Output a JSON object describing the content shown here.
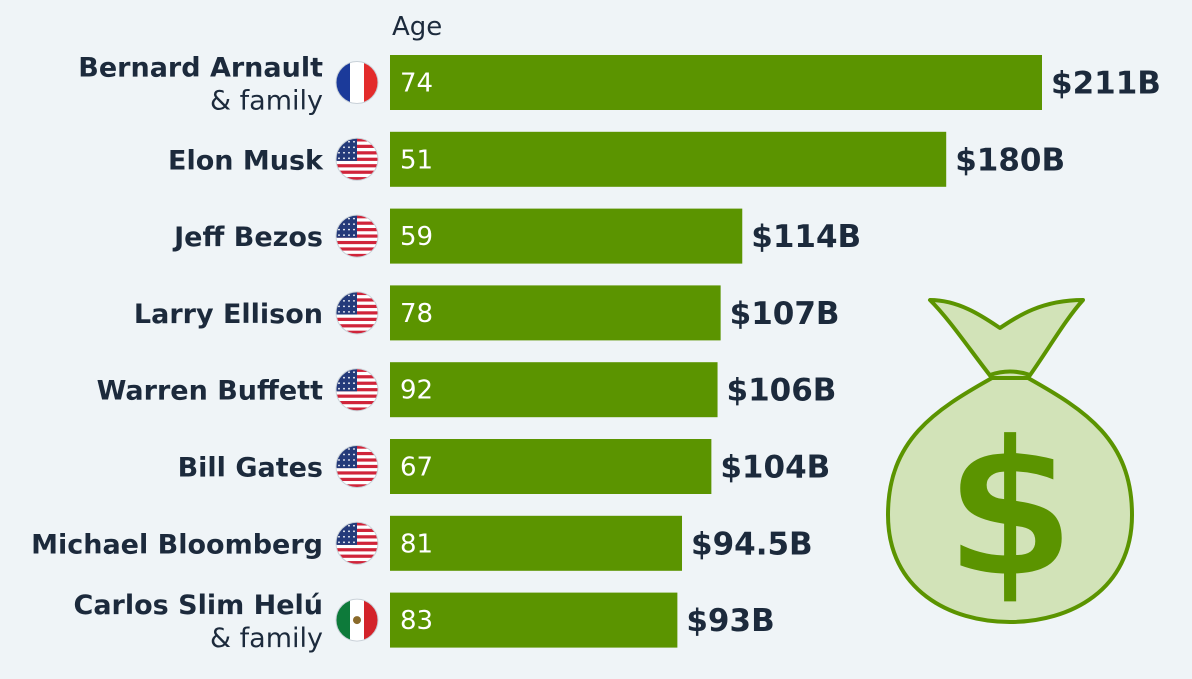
{
  "chart_data": {
    "type": "bar",
    "orientation": "horizontal",
    "column_header": "Age",
    "categories": [
      {
        "name": "Bernard Arnault",
        "sub": "& family",
        "flag": "france-flag-icon"
      },
      {
        "name": "Elon Musk",
        "sub": "",
        "flag": "usa-flag-icon"
      },
      {
        "name": "Jeff Bezos",
        "sub": "",
        "flag": "usa-flag-icon"
      },
      {
        "name": "Larry Ellison",
        "sub": "",
        "flag": "usa-flag-icon"
      },
      {
        "name": "Warren Buffett",
        "sub": "",
        "flag": "usa-flag-icon"
      },
      {
        "name": "Bill Gates",
        "sub": "",
        "flag": "usa-flag-icon"
      },
      {
        "name": "Michael Bloomberg",
        "sub": "",
        "flag": "usa-flag-icon"
      },
      {
        "name": "Carlos Slim Helú",
        "sub": "& family",
        "flag": "mexico-flag-icon"
      }
    ],
    "values": [
      211,
      180,
      114,
      107,
      106,
      104,
      94.5,
      93
    ],
    "value_labels": [
      "$211B",
      "$180B",
      "$114B",
      "$107B",
      "$106B",
      "$104B",
      "$94.5B",
      "$93B"
    ],
    "ages": [
      "74",
      "51",
      "59",
      "78",
      "92",
      "67",
      "81",
      "83"
    ],
    "xlim": [
      0,
      211
    ],
    "grid": false,
    "colors": {
      "bar": "#5b9400",
      "background": "#eff4f7",
      "text": "#1c2a3c",
      "bag_fill": "#d2e3b8",
      "bag_stroke": "#5b9400"
    },
    "decoration": "money-bag-icon"
  }
}
